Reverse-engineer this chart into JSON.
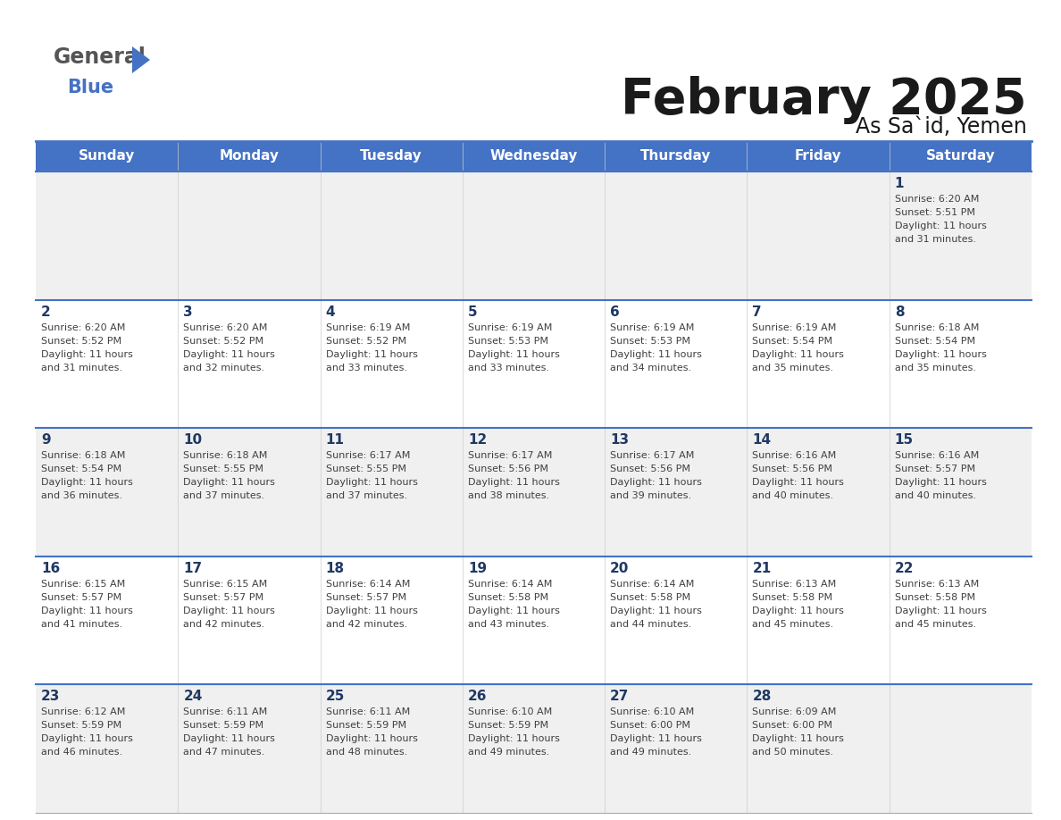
{
  "title": "February 2025",
  "subtitle": "As Sa`id, Yemen",
  "header_bg": "#4472C4",
  "header_text_color": "#FFFFFF",
  "days_of_week": [
    "Sunday",
    "Monday",
    "Tuesday",
    "Wednesday",
    "Thursday",
    "Friday",
    "Saturday"
  ],
  "row_bg_odd": "#F0F0F0",
  "row_bg_even": "#FFFFFF",
  "cell_border_color": "#4472C4",
  "day_number_color": "#1F3864",
  "info_text_color": "#404040",
  "calendar_data": [
    [
      {
        "day": "",
        "sunrise": "",
        "sunset": "",
        "daylight": ""
      },
      {
        "day": "",
        "sunrise": "",
        "sunset": "",
        "daylight": ""
      },
      {
        "day": "",
        "sunrise": "",
        "sunset": "",
        "daylight": ""
      },
      {
        "day": "",
        "sunrise": "",
        "sunset": "",
        "daylight": ""
      },
      {
        "day": "",
        "sunrise": "",
        "sunset": "",
        "daylight": ""
      },
      {
        "day": "",
        "sunrise": "",
        "sunset": "",
        "daylight": ""
      },
      {
        "day": "1",
        "sunrise": "6:20 AM",
        "sunset": "5:51 PM",
        "daylight": "11 hours\nand 31 minutes."
      }
    ],
    [
      {
        "day": "2",
        "sunrise": "6:20 AM",
        "sunset": "5:52 PM",
        "daylight": "11 hours\nand 31 minutes."
      },
      {
        "day": "3",
        "sunrise": "6:20 AM",
        "sunset": "5:52 PM",
        "daylight": "11 hours\nand 32 minutes."
      },
      {
        "day": "4",
        "sunrise": "6:19 AM",
        "sunset": "5:52 PM",
        "daylight": "11 hours\nand 33 minutes."
      },
      {
        "day": "5",
        "sunrise": "6:19 AM",
        "sunset": "5:53 PM",
        "daylight": "11 hours\nand 33 minutes."
      },
      {
        "day": "6",
        "sunrise": "6:19 AM",
        "sunset": "5:53 PM",
        "daylight": "11 hours\nand 34 minutes."
      },
      {
        "day": "7",
        "sunrise": "6:19 AM",
        "sunset": "5:54 PM",
        "daylight": "11 hours\nand 35 minutes."
      },
      {
        "day": "8",
        "sunrise": "6:18 AM",
        "sunset": "5:54 PM",
        "daylight": "11 hours\nand 35 minutes."
      }
    ],
    [
      {
        "day": "9",
        "sunrise": "6:18 AM",
        "sunset": "5:54 PM",
        "daylight": "11 hours\nand 36 minutes."
      },
      {
        "day": "10",
        "sunrise": "6:18 AM",
        "sunset": "5:55 PM",
        "daylight": "11 hours\nand 37 minutes."
      },
      {
        "day": "11",
        "sunrise": "6:17 AM",
        "sunset": "5:55 PM",
        "daylight": "11 hours\nand 37 minutes."
      },
      {
        "day": "12",
        "sunrise": "6:17 AM",
        "sunset": "5:56 PM",
        "daylight": "11 hours\nand 38 minutes."
      },
      {
        "day": "13",
        "sunrise": "6:17 AM",
        "sunset": "5:56 PM",
        "daylight": "11 hours\nand 39 minutes."
      },
      {
        "day": "14",
        "sunrise": "6:16 AM",
        "sunset": "5:56 PM",
        "daylight": "11 hours\nand 40 minutes."
      },
      {
        "day": "15",
        "sunrise": "6:16 AM",
        "sunset": "5:57 PM",
        "daylight": "11 hours\nand 40 minutes."
      }
    ],
    [
      {
        "day": "16",
        "sunrise": "6:15 AM",
        "sunset": "5:57 PM",
        "daylight": "11 hours\nand 41 minutes."
      },
      {
        "day": "17",
        "sunrise": "6:15 AM",
        "sunset": "5:57 PM",
        "daylight": "11 hours\nand 42 minutes."
      },
      {
        "day": "18",
        "sunrise": "6:14 AM",
        "sunset": "5:57 PM",
        "daylight": "11 hours\nand 42 minutes."
      },
      {
        "day": "19",
        "sunrise": "6:14 AM",
        "sunset": "5:58 PM",
        "daylight": "11 hours\nand 43 minutes."
      },
      {
        "day": "20",
        "sunrise": "6:14 AM",
        "sunset": "5:58 PM",
        "daylight": "11 hours\nand 44 minutes."
      },
      {
        "day": "21",
        "sunrise": "6:13 AM",
        "sunset": "5:58 PM",
        "daylight": "11 hours\nand 45 minutes."
      },
      {
        "day": "22",
        "sunrise": "6:13 AM",
        "sunset": "5:58 PM",
        "daylight": "11 hours\nand 45 minutes."
      }
    ],
    [
      {
        "day": "23",
        "sunrise": "6:12 AM",
        "sunset": "5:59 PM",
        "daylight": "11 hours\nand 46 minutes."
      },
      {
        "day": "24",
        "sunrise": "6:11 AM",
        "sunset": "5:59 PM",
        "daylight": "11 hours\nand 47 minutes."
      },
      {
        "day": "25",
        "sunrise": "6:11 AM",
        "sunset": "5:59 PM",
        "daylight": "11 hours\nand 48 minutes."
      },
      {
        "day": "26",
        "sunrise": "6:10 AM",
        "sunset": "5:59 PM",
        "daylight": "11 hours\nand 49 minutes."
      },
      {
        "day": "27",
        "sunrise": "6:10 AM",
        "sunset": "6:00 PM",
        "daylight": "11 hours\nand 49 minutes."
      },
      {
        "day": "28",
        "sunrise": "6:09 AM",
        "sunset": "6:00 PM",
        "daylight": "11 hours\nand 50 minutes."
      },
      {
        "day": "",
        "sunrise": "",
        "sunset": "",
        "daylight": ""
      }
    ]
  ]
}
